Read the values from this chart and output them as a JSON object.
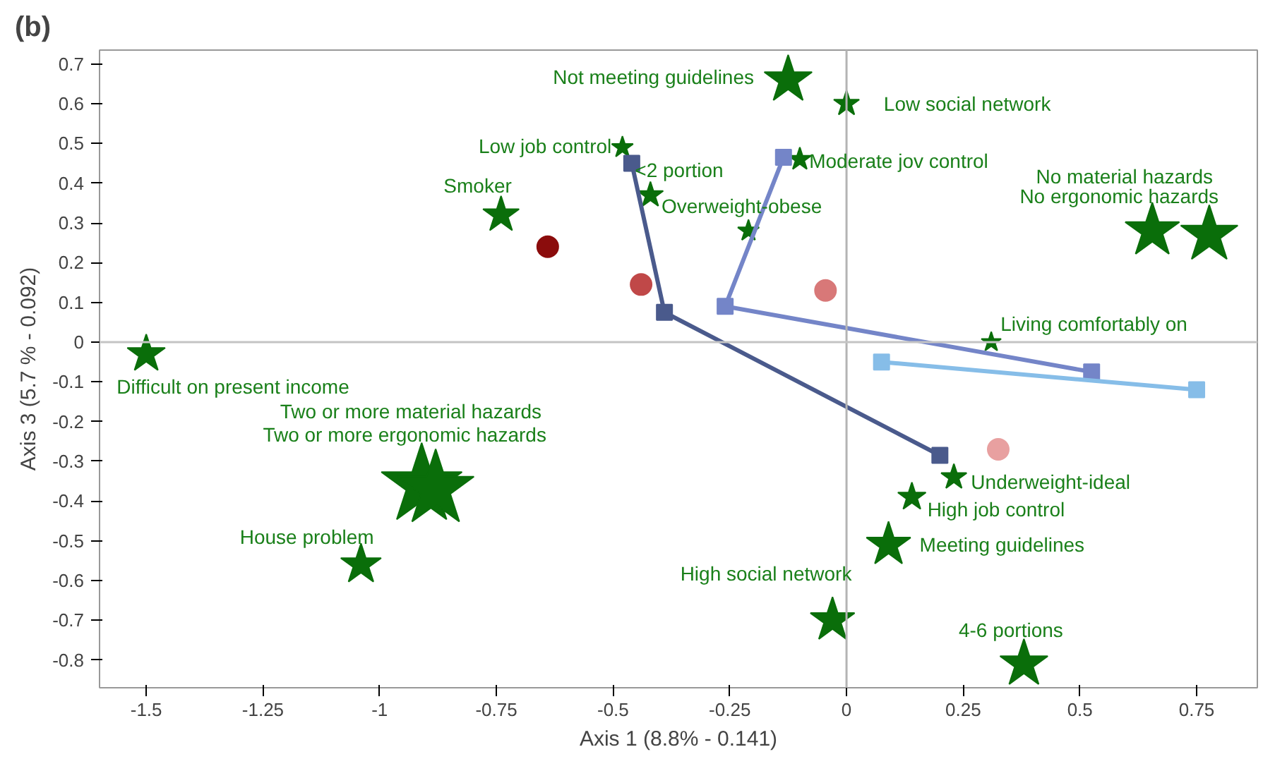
{
  "chart_data": {
    "type": "scatter",
    "title": "(b)",
    "xlabel": "Axis 1 (8.8% - 0.141)",
    "ylabel": "Axis 3 (5.7 % - 0.092)",
    "xlim": [
      -1.6,
      0.88
    ],
    "ylim": [
      -0.87,
      0.735
    ],
    "xticks": [
      -1.5,
      -1.25,
      -1,
      -0.75,
      -0.5,
      -0.25,
      0,
      0.25,
      0.5,
      0.75
    ],
    "yticks": [
      -0.8,
      -0.7,
      -0.6,
      -0.5,
      -0.4,
      -0.3,
      -0.2,
      -0.1,
      0,
      0.1,
      0.2,
      0.3,
      0.4,
      0.5,
      0.6,
      0.7
    ],
    "grid": false,
    "ref_lines": [
      {
        "axis": "x",
        "value": 0,
        "color": "#b4b4b4"
      },
      {
        "axis": "y",
        "value": 0,
        "color": "#c4c4c4"
      }
    ],
    "series": [
      {
        "type": "bubble",
        "marker": "star",
        "color": "#0a6e0a",
        "x": [
          -0.125,
          0.0,
          -0.48,
          -0.1,
          -0.42,
          -0.74,
          -0.21,
          0.655,
          0.777,
          0.31,
          -1.5,
          -0.91,
          -0.88,
          -1.04,
          0.23,
          0.14,
          0.09,
          -0.03,
          0.38
        ],
        "values": [
          0.66,
          0.6,
          0.49,
          0.46,
          0.37,
          0.32,
          0.28,
          0.28,
          0.27,
          0.0,
          -0.03,
          -0.36,
          -0.37,
          -0.56,
          -0.34,
          -0.39,
          -0.51,
          -0.7,
          -0.81
        ],
        "sizes": [
          0.35,
          0.1,
          0.07,
          0.08,
          0.1,
          0.2,
          0.07,
          0.45,
          0.5,
          0.06,
          0.22,
          1,
          0.9,
          0.25,
          0.1,
          0.12,
          0.3,
          0.3,
          0.35
        ]
      },
      {
        "marker": "circle",
        "x": [
          -0.64,
          -0.44,
          -0.045,
          0.325
        ],
        "values": [
          0.24,
          0.145,
          0.13,
          -0.27
        ],
        "colors": [
          "#8b0c0c",
          "#c04848",
          "#d87878",
          "#e8a0a0"
        ]
      },
      {
        "type": "line",
        "marker": "square",
        "color": "#4a5a8c",
        "x": [
          0.2,
          -0.39,
          -0.46
        ],
        "values": [
          -0.285,
          0.075,
          0.45
        ]
      },
      {
        "type": "line",
        "marker": "square",
        "color": "#7485c8",
        "x": [
          0.525,
          -0.26,
          -0.135
        ],
        "values": [
          -0.075,
          0.09,
          0.465
        ]
      },
      {
        "type": "line",
        "marker": "square",
        "color": "#86bde8",
        "x": [
          0.75,
          0.075
        ],
        "values": [
          -0.12,
          -0.05
        ]
      }
    ],
    "annotations": [
      {
        "text": "Not meeting guidelines",
        "x": -0.125,
        "y": 0.66
      },
      {
        "text": "Low social network",
        "x": 0.0,
        "y": 0.6
      },
      {
        "text": "Low job control",
        "x": -0.48,
        "y": 0.49
      },
      {
        "text": "<2 portion",
        "x": -0.42,
        "y": 0.37
      },
      {
        "text": "Moderate jov control",
        "x": -0.1,
        "y": 0.46
      },
      {
        "text": "Overweight-obese",
        "x": -0.21,
        "y": 0.28
      },
      {
        "text": "Smoker",
        "x": -0.74,
        "y": 0.32
      },
      {
        "text": "No material hazards",
        "x": 0.655,
        "y": 0.28
      },
      {
        "text": "No ergonomic hazards",
        "x": 0.777,
        "y": 0.27
      },
      {
        "text": "Living comfortably on",
        "x": 0.31,
        "y": 0.0
      },
      {
        "text": "Difficult on present income",
        "x": -1.5,
        "y": -0.03
      },
      "Two or more material hazards",
      {
        "text": "Two or more ergonomic hazards",
        "x": -0.88,
        "y": -0.37
      },
      {
        "text": "House problem",
        "x": -1.04,
        "y": -0.56
      },
      {
        "text": "Underweight-ideal",
        "x": 0.23,
        "y": -0.34
      },
      {
        "text": "High job control",
        "x": 0.14,
        "y": -0.39
      },
      {
        "text": "Meeting guidelines",
        "x": 0.09,
        "y": -0.51
      },
      {
        "text": "High social network",
        "x": -0.03,
        "y": -0.7
      },
      {
        "text": "4-6 portions",
        "x": 0.38,
        "y": -0.81
      }
    ]
  }
}
